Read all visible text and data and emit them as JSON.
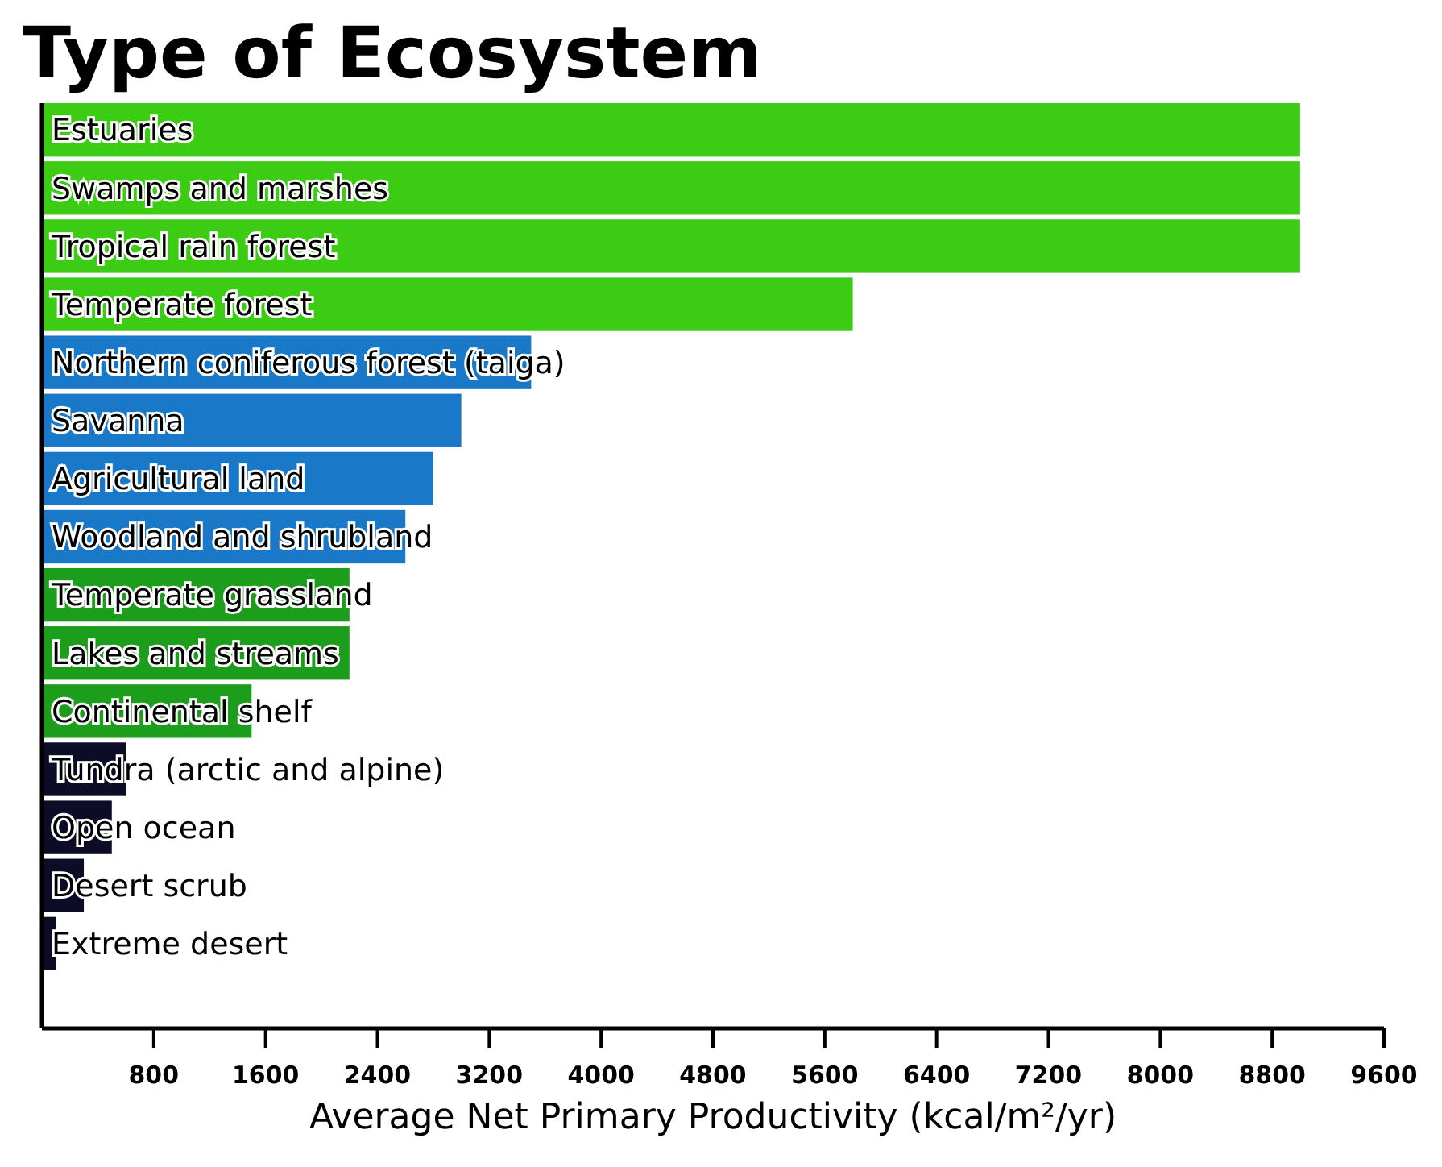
{
  "chart_data": {
    "type": "bar",
    "orientation": "horizontal",
    "title": "Type of Ecosystem",
    "xlabel": "Average Net Primary Productivity (kcal/m²/yr)",
    "categories": [
      "Estuaries",
      "Swamps and marshes",
      "Tropical rain forest",
      "Temperate forest",
      "Northern coniferous forest (taiga)",
      "Savanna",
      "Agricultural land",
      "Woodland and shrubland",
      "Temperate grassland",
      "Lakes and streams",
      "Continental shelf",
      "Tundra (arctic and alpine)",
      "Open ocean",
      "Desert scrub",
      "Extreme desert"
    ],
    "values": [
      9000,
      9000,
      9000,
      5800,
      3500,
      3000,
      2800,
      2600,
      2200,
      2200,
      1500,
      600,
      500,
      300,
      100
    ],
    "colors": [
      "#3ccc14",
      "#3ccc14",
      "#3ccc14",
      "#3ccc14",
      "#1a78c8",
      "#1a78c8",
      "#1a78c8",
      "#1a78c8",
      "#1c9e1c",
      "#1c9e1c",
      "#1c9e1c",
      "#0c0c26",
      "#0c0c26",
      "#0c0c26",
      "#0c0c26"
    ],
    "xlim": [
      0,
      9600
    ],
    "xticks": [
      800,
      1600,
      2400,
      3200,
      4000,
      4800,
      5600,
      6400,
      7200,
      8000,
      8800,
      9600
    ],
    "grid": false
  }
}
